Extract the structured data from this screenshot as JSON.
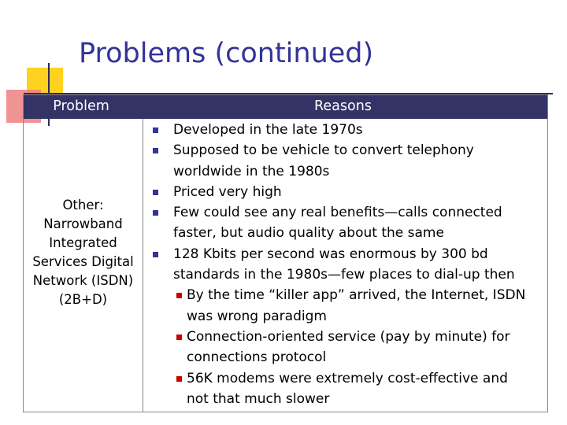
{
  "slide": {
    "title": "Problems (continued)"
  },
  "table": {
    "header": {
      "problem": "Problem",
      "reasons": "Reasons"
    },
    "problem_lines": [
      "Other:",
      "Narrowband",
      "Integrated",
      "Services Digital",
      "Network (ISDN)",
      "(2B+D)"
    ],
    "reasons": [
      {
        "lines": [
          "Developed in the late 1970s"
        ]
      },
      {
        "lines": [
          "Supposed to be vehicle to convert telephony",
          "worldwide in the 1980s"
        ]
      },
      {
        "lines": [
          "Priced very high"
        ]
      },
      {
        "lines": [
          "Few could see any real benefits—calls connected",
          "faster, but audio quality about the same"
        ]
      },
      {
        "lines": [
          "128 Kbits per second was enormous by 300 bd",
          "standards in the 1980s—few places to dial-up then"
        ]
      }
    ],
    "sub_reasons": [
      {
        "lines": [
          "By the time “killer app” arrived, the Internet, ISDN",
          "was wrong paradigm"
        ]
      },
      {
        "lines": [
          "Connection-oriented service (pay by minute) for",
          "connections protocol"
        ]
      },
      {
        "lines": [
          "56K modems were extremely cost-effective and",
          "not that much slower"
        ]
      }
    ]
  },
  "colors": {
    "title": "#333399",
    "header_bg": "#333366",
    "bullet": "#333399",
    "sub_bullet": "#cc0000",
    "deco_yellow": "#ffd21f",
    "deco_red": "#f08080"
  }
}
